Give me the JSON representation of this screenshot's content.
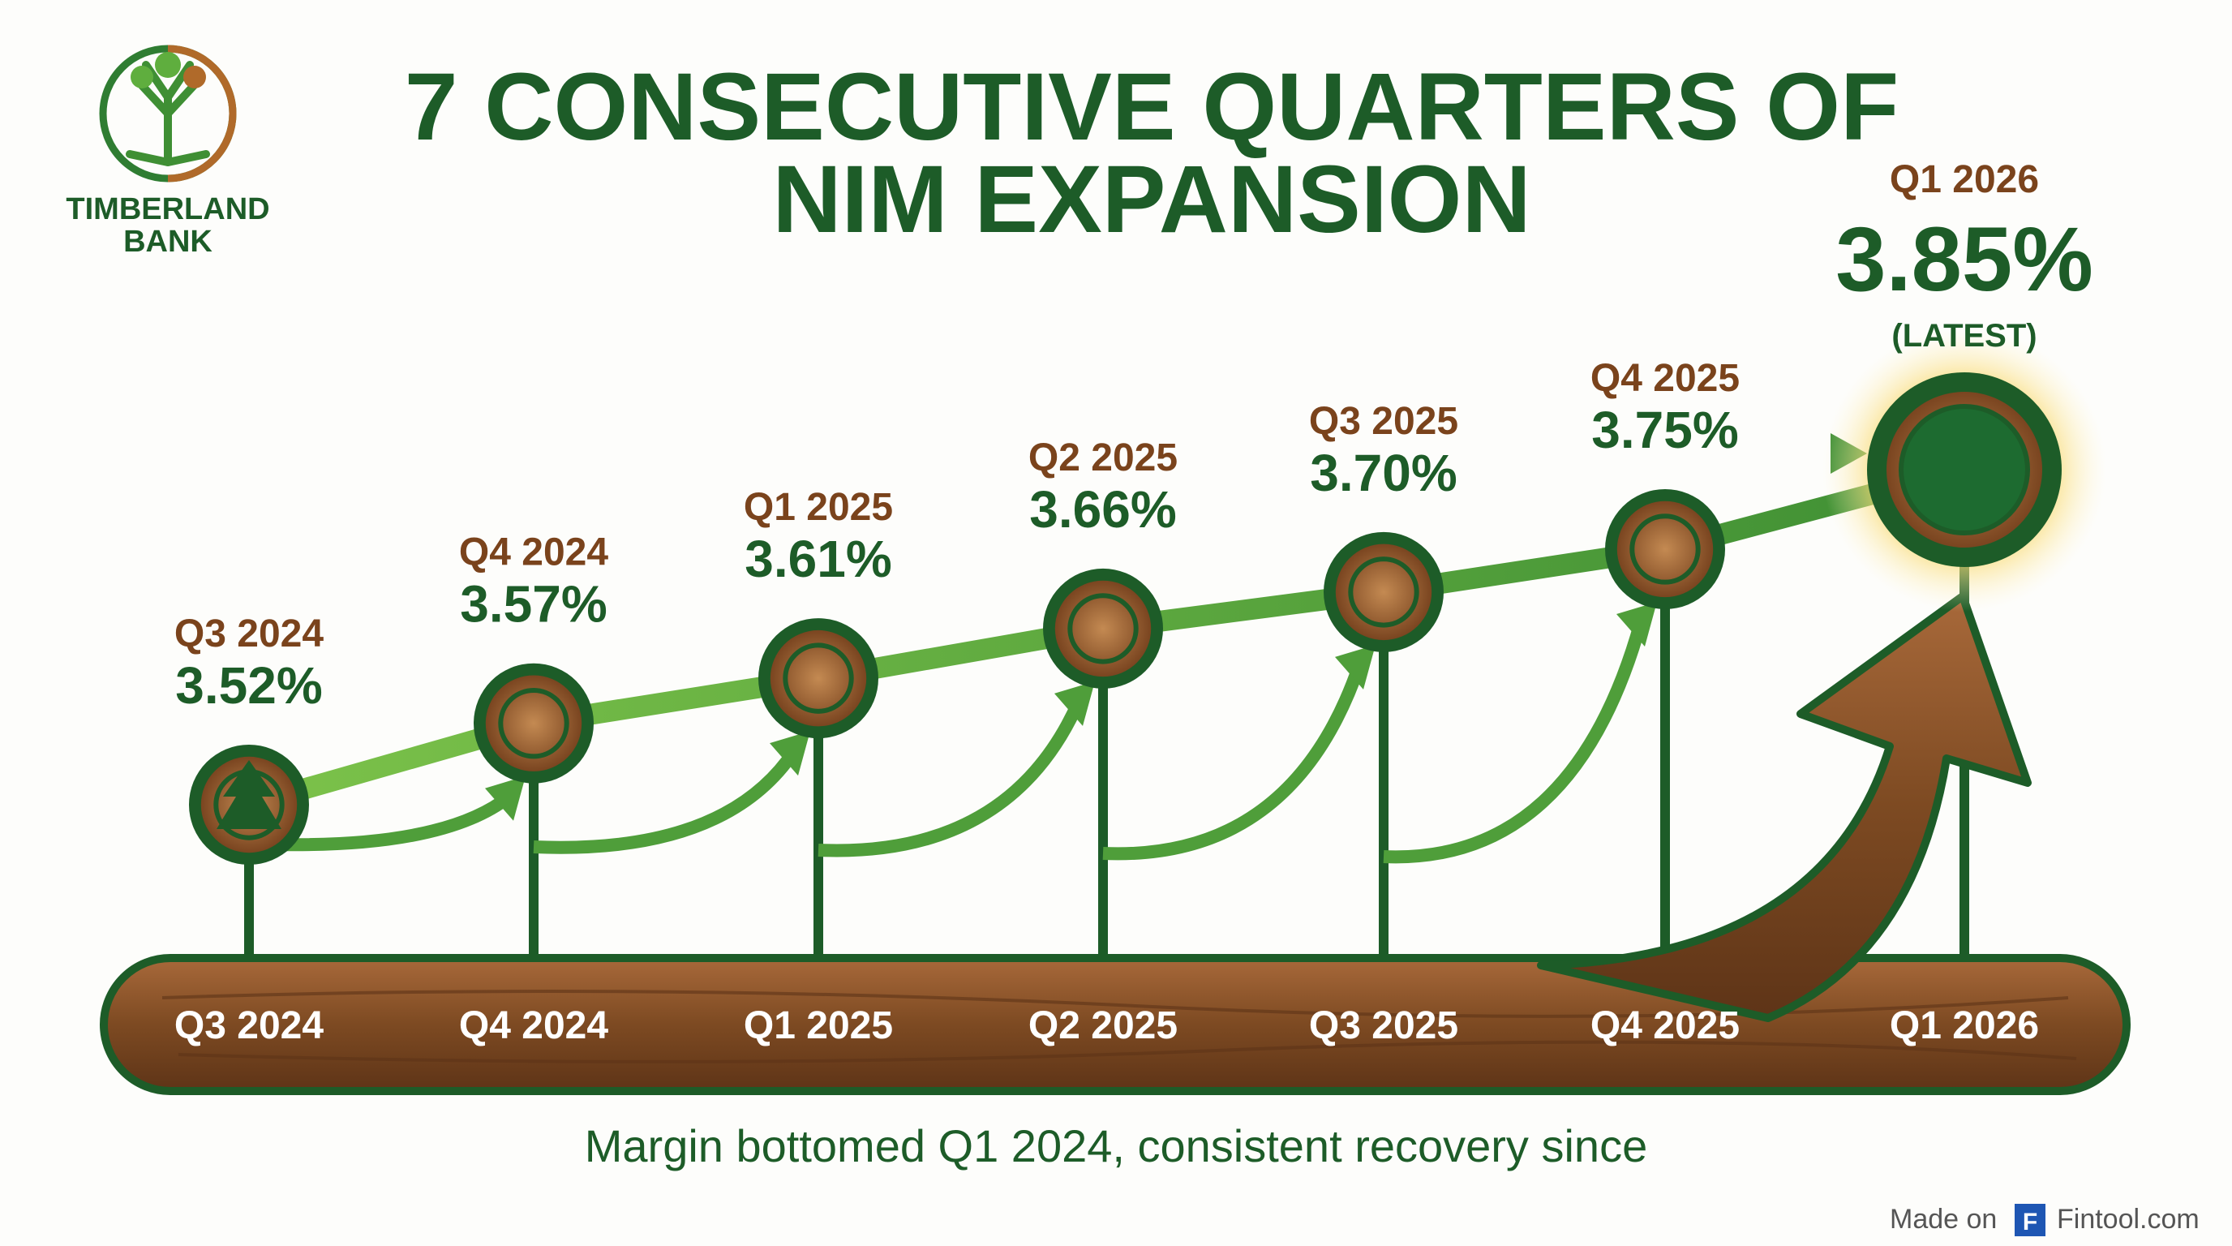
{
  "brand": {
    "line1": "TIMBERLAND",
    "line2": "BANK"
  },
  "title": {
    "line1": "7 CONSECUTIVE QUARTERS OF",
    "line2": "NIM EXPANSION"
  },
  "subtitle": "Margin bottomed Q1 2024, consistent recovery since",
  "footer": {
    "made_on": "Made on",
    "logo_letter": "F",
    "site": "Fintool.com"
  },
  "colors": {
    "green": "#1d5c28",
    "brown": "#7a431c",
    "light_green": "#5fae3e",
    "wood": "#8a5228",
    "glow": "#f5c542"
  },
  "chart_data": {
    "type": "line",
    "title": "7 CONSECUTIVE QUARTERS OF NIM EXPANSION",
    "categories": [
      "Q3 2024",
      "Q4 2024",
      "Q1 2025",
      "Q2 2025",
      "Q3 2025",
      "Q4 2025",
      "Q1 2026"
    ],
    "value_labels": [
      "3.52%",
      "3.57%",
      "3.61%",
      "3.66%",
      "3.70%",
      "3.75%",
      "3.85%"
    ],
    "values": [
      3.52,
      3.57,
      3.61,
      3.66,
      3.7,
      3.75,
      3.85
    ],
    "units": "%",
    "annotation": "(LATEST)",
    "highlight_index": 6,
    "grid": false,
    "legend": "none"
  }
}
